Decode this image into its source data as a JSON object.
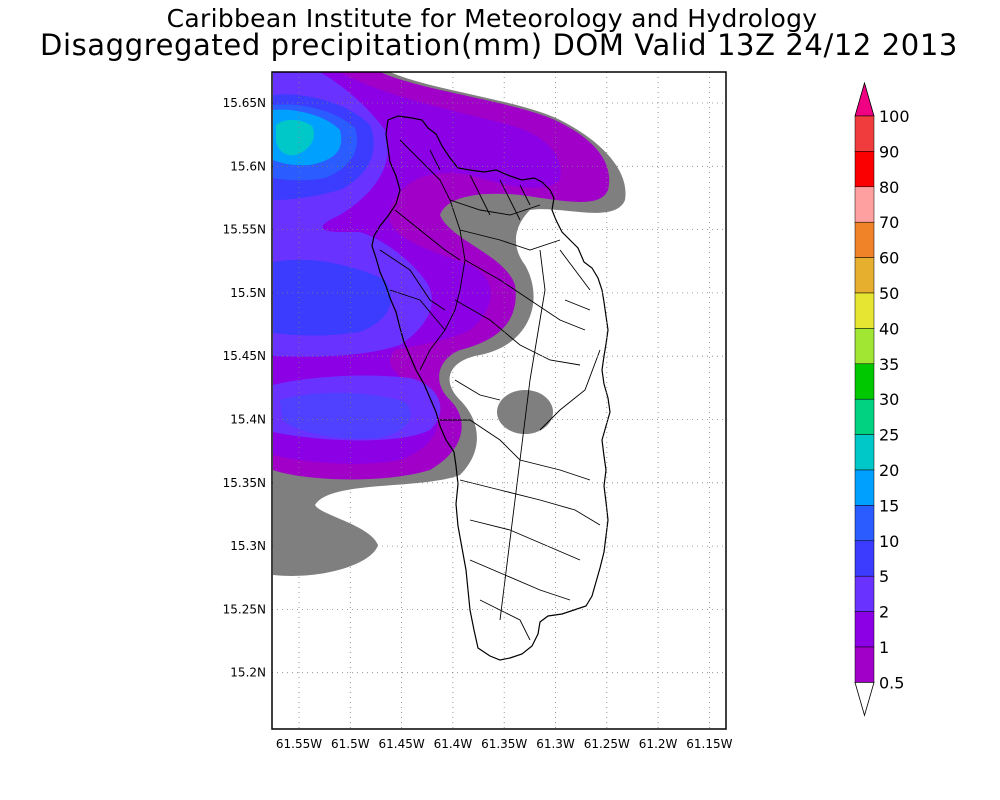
{
  "title": {
    "line1": "Caribbean Institute for Meteorology and Hydrology",
    "line2": "Disaggregated precipitation(mm) DOM Valid 13Z 24/12 2013"
  },
  "map": {
    "lon_range": [
      -61.57,
      -61.13
    ],
    "lat_range": [
      15.15,
      15.675
    ],
    "x_ticks": [
      "61.55W",
      "61.5W",
      "61.45W",
      "61.4W",
      "61.35W",
      "61.3W",
      "61.25W",
      "61.2W",
      "61.15W"
    ],
    "y_ticks": [
      "15.65N",
      "15.6N",
      "15.55N",
      "15.5N",
      "15.45N",
      "15.4N",
      "15.35N",
      "15.3N",
      "15.25N",
      "15.2N"
    ],
    "grid": "dotted"
  },
  "colorbar": {
    "levels": [
      "0.5",
      "1",
      "2",
      "5",
      "10",
      "15",
      "20",
      "25",
      "30",
      "35",
      "40",
      "50",
      "60",
      "70",
      "80",
      "90",
      "100"
    ],
    "colors": [
      "#7f7f7f",
      "#a000c8",
      "#8c00e6",
      "#6a32ff",
      "#3c3cff",
      "#2a5cff",
      "#00a0ff",
      "#00c8c8",
      "#00d282",
      "#00c800",
      "#a0e632",
      "#e6e632",
      "#e6af2d",
      "#f08228",
      "#ffa0a0",
      "#fa0000",
      "#f03c3c",
      "#f00082"
    ]
  }
}
